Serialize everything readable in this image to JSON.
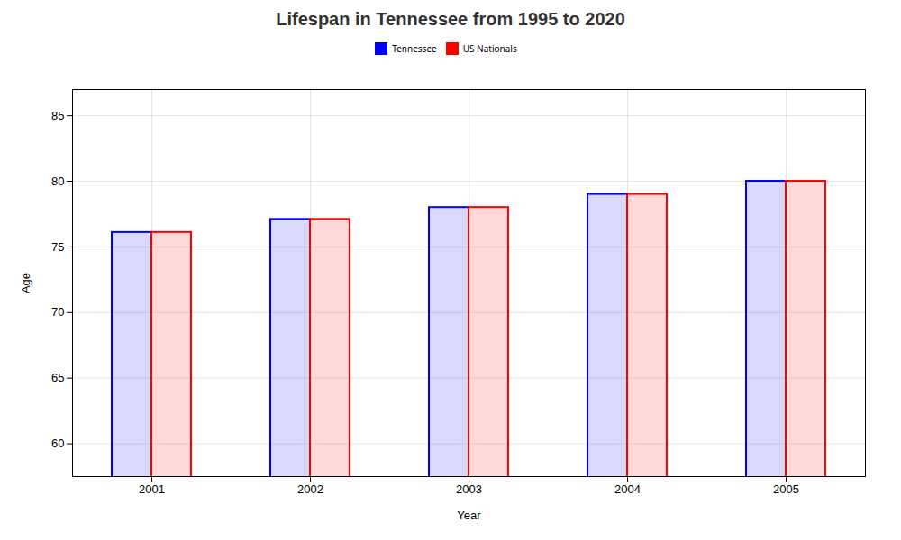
{
  "chart_data": {
    "type": "bar",
    "title": "Lifespan in Tennessee from 1995 to 2020",
    "x_label": "Year",
    "y_label": "Age",
    "categories": [
      "2001",
      "2002",
      "2003",
      "2004",
      "2005"
    ],
    "series": [
      {
        "name": "Tennessee",
        "color": "#0000ff",
        "values": [
          76.1,
          77.1,
          78.0,
          79.0,
          80.0
        ]
      },
      {
        "name": "US Nationals",
        "color": "#ff0000",
        "values": [
          76.1,
          77.1,
          78.0,
          79.0,
          80.0
        ]
      }
    ],
    "ylim": [
      57.5,
      87
    ],
    "yticks": [
      60,
      65,
      70,
      75,
      80,
      85
    ],
    "grid": true,
    "legend": "top"
  }
}
